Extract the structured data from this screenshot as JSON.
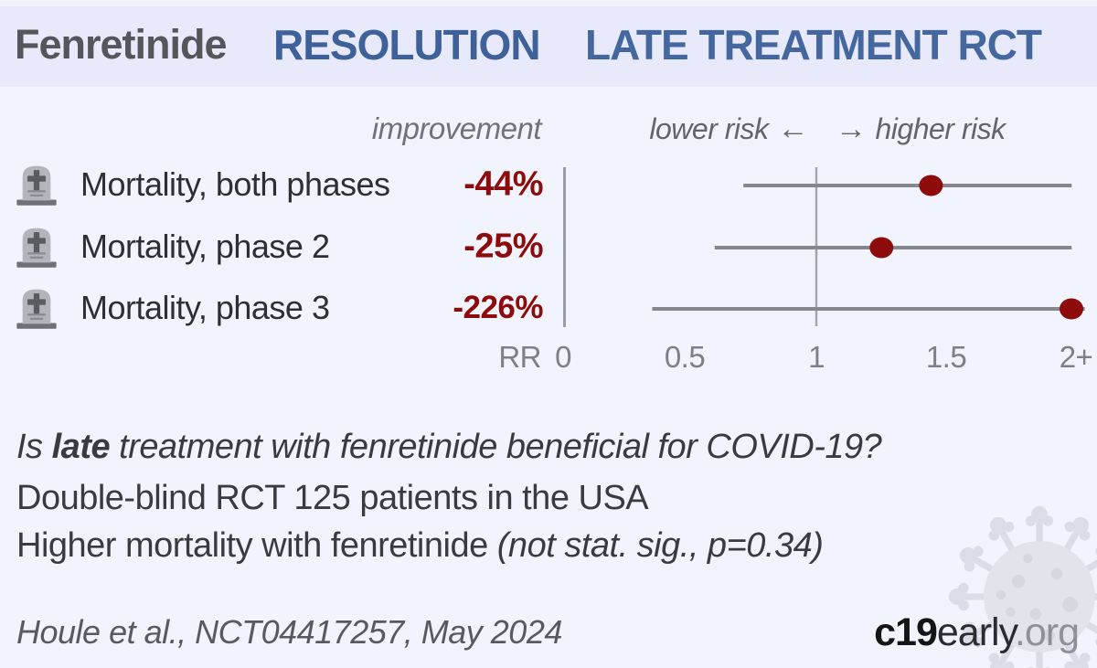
{
  "header": {
    "drug": "Fenretinide",
    "trial": "RESOLUTION",
    "stage": "LATE TREATMENT RCT"
  },
  "col_improvement": "improvement",
  "risk_header": {
    "lower": "lower risk",
    "left_arrow": "←",
    "right_arrow": "→",
    "higher": "higher risk"
  },
  "summary": {
    "q_prefix": "Is ",
    "q_bold": "late",
    "q_rest": " treatment with fenretinide beneficial for COVID-19?",
    "design": "Double-blind RCT 125 patients in the USA",
    "result": "Higher mortality with fenretinide ",
    "result_note": "(not stat. sig., p=0.34)"
  },
  "footer": {
    "citation": "Houle et al., NCT04417257, May 2024",
    "logo": {
      "c19": "c19",
      "early": "early",
      "org": ".org"
    }
  },
  "colors": {
    "header_blue_bold": "#3e619a",
    "header_blue": "#44679f",
    "value_red": "#8e0b0b",
    "ci_line_gray": "#85878c",
    "band_bg": "#e8eafb",
    "page_bg": "#f1f3fd"
  },
  "chart_data": {
    "type": "scatter",
    "subtype": "forest-plot",
    "title": "Fenretinide RESOLUTION LATE TREATMENT RCT",
    "x_axis": {
      "label": "RR",
      "ticks": [
        "0",
        "0.5",
        "1",
        "1.5",
        "2+"
      ],
      "min": 0,
      "max_display": "2+"
    },
    "direction_labels": {
      "lower": "lower risk",
      "higher": "higher risk"
    },
    "reference_line_rr": 1,
    "marker_color": "#8e0b0b",
    "line_color": "#85878c",
    "series": [
      {
        "outcome": "Mortality, both phases",
        "improvement_label": "-44%",
        "improvement_pct": -44,
        "rr": 1.44,
        "ci_display": [
          0.72,
          1.98
        ],
        "ci_upper_clipped": true
      },
      {
        "outcome": "Mortality, phase 2",
        "improvement_label": "-25%",
        "improvement_pct": -25,
        "rr": 1.25,
        "ci_display": [
          0.61,
          1.98
        ],
        "ci_upper_clipped": true
      },
      {
        "outcome": "Mortality, phase 3",
        "improvement_label": "-226%",
        "improvement_pct": -226,
        "rr": 3.26,
        "dot_clipped_at": 2,
        "ci_display": [
          0.37,
          2.03
        ],
        "ci_upper_clipped": true
      }
    ]
  }
}
